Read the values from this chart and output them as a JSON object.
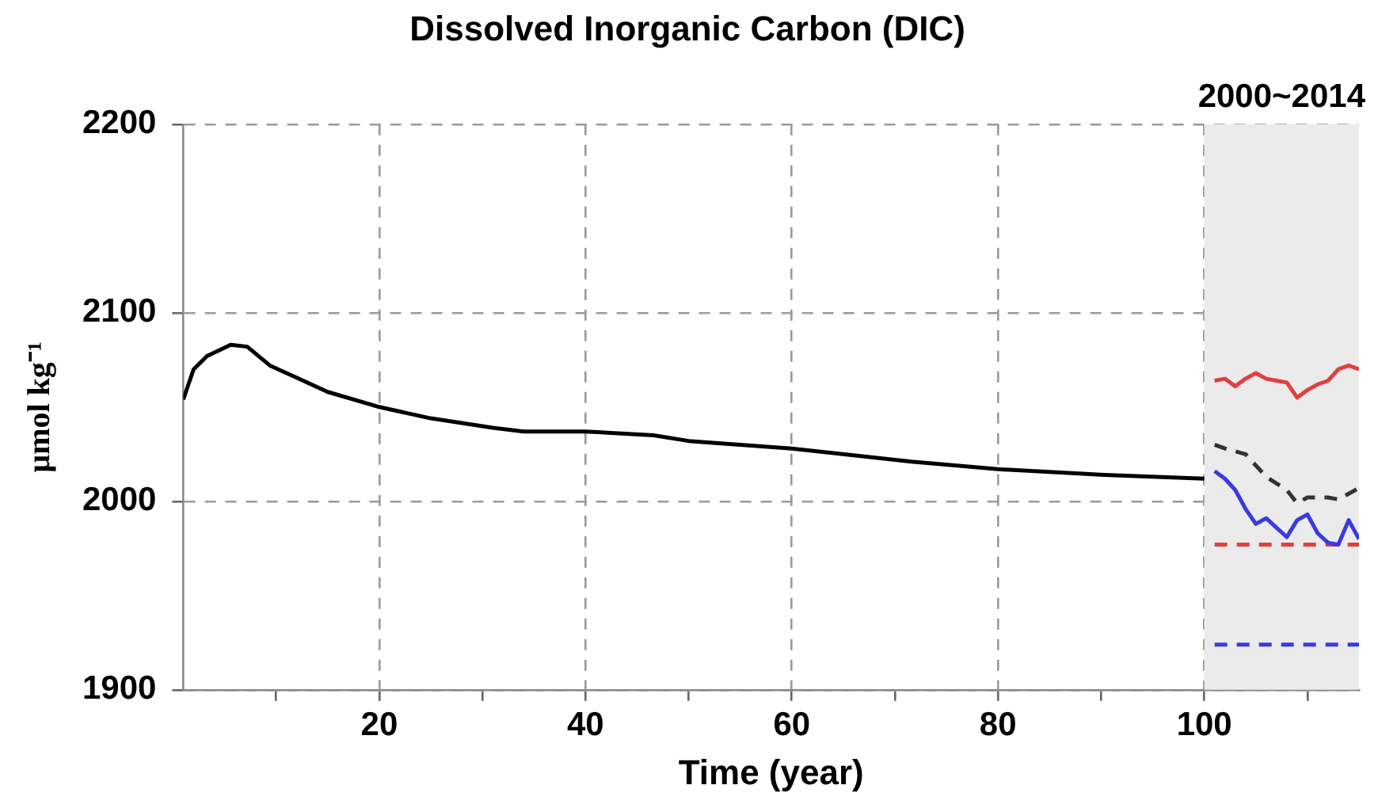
{
  "chart_data": {
    "type": "line",
    "title": "Dissolved Inorganic Carbon (DIC)",
    "xlabel": "Time (year)",
    "ylabel": "μmol kg⁻¹",
    "xlim": [
      1,
      115
    ],
    "xticks": [
      {
        "value": 10,
        "label": null
      },
      20,
      {
        "value": 30,
        "label": null
      },
      40,
      {
        "value": 50,
        "label": null
      },
      60,
      {
        "value": 70,
        "label": null
      },
      80,
      {
        "value": 90,
        "label": null
      },
      100,
      {
        "value": 110,
        "label": null
      }
    ],
    "ylim": [
      1900,
      2200
    ],
    "yticks": [
      1900,
      2000,
      2100,
      2200
    ],
    "grid": true,
    "legend": false,
    "marker": "none",
    "bands": [
      {
        "axis": "x",
        "from": 100,
        "to": 115,
        "label": "2000~2014",
        "color": "#ebebeb"
      }
    ],
    "series": [
      {
        "color": "#000000",
        "line_style": "solid",
        "x": [
          1,
          2,
          3.3,
          5.6,
          7.2,
          9.4,
          12.2,
          15,
          20,
          25,
          31,
          34,
          40,
          46.6,
          50,
          60,
          71.6,
          80,
          90.3,
          100
        ],
        "values": [
          2054,
          2070,
          2077,
          2083,
          2082,
          2072,
          2065,
          2058,
          2050,
          2044,
          2039,
          2037,
          2037,
          2035,
          2032,
          2028,
          2021,
          2017,
          2014,
          2012
        ]
      },
      {
        "color": "#e04040",
        "line_style": "solid",
        "x": [
          101,
          102,
          103,
          104,
          105,
          106,
          107,
          108,
          109,
          110,
          111,
          112,
          113,
          114,
          115
        ],
        "values": [
          2064,
          2065,
          2061,
          2065,
          2068,
          2065,
          2064,
          2063,
          2055,
          2059,
          2062,
          2064,
          2070,
          2072,
          2070
        ]
      },
      {
        "color": "#333333",
        "line_style": "dashed",
        "x": [
          101,
          102,
          104,
          106,
          108,
          109,
          110,
          112,
          113,
          114,
          115
        ],
        "values": [
          2030,
          2028,
          2025,
          2013,
          2006,
          1999,
          2002,
          2002,
          2001,
          2004,
          2007
        ]
      },
      {
        "color": "#3a3ae0",
        "line_style": "solid",
        "x": [
          101,
          102,
          103,
          104,
          105,
          106,
          107,
          108,
          109,
          110,
          111,
          112,
          113,
          114,
          115
        ],
        "values": [
          2016,
          2012,
          2006,
          1996,
          1988,
          1991,
          1986,
          1981,
          1990,
          1993,
          1983,
          1978,
          1977,
          1990,
          1980
        ]
      },
      {
        "color": "#e04040",
        "line_style": "dashed",
        "x": [
          101,
          115
        ],
        "values": [
          1977,
          1977
        ]
      },
      {
        "color": "#3a3ae0",
        "line_style": "dashed",
        "x": [
          101,
          115
        ],
        "values": [
          1924,
          1924
        ]
      }
    ]
  }
}
